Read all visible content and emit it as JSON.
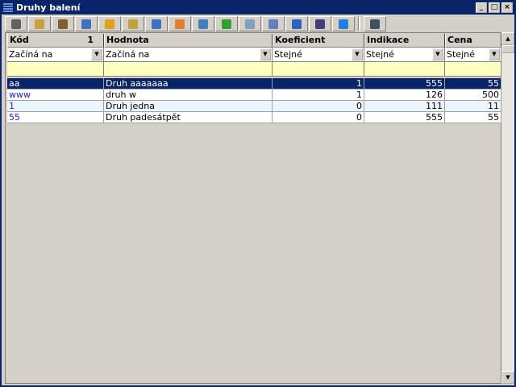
{
  "window": {
    "title": "Druhy balení"
  },
  "toolbar": {
    "buttons": [
      "list-icon",
      "view-icon",
      "view-list-icon",
      "new-icon",
      "edit-icon",
      "delete-icon",
      "copy-icon",
      "sort-icon",
      "filter-icon",
      "excel-icon",
      "edit-form-icon",
      "print-preview-icon",
      "clock-icon",
      "refresh-icon",
      "help-icon",
      "print-icon"
    ]
  },
  "grid": {
    "columns": [
      {
        "label": "Kód",
        "filter": "Začíná na",
        "sort": "1"
      },
      {
        "label": "Hodnota",
        "filter": "Začíná na"
      },
      {
        "label": "Koeficient",
        "filter": "Stejné"
      },
      {
        "label": "Indikace",
        "filter": "Stejné"
      },
      {
        "label": "Cena",
        "filter": "Stejné"
      }
    ],
    "rows": [
      [
        "aa",
        "Druh aaaaaaa",
        "1",
        "555",
        "55"
      ],
      [
        "www",
        "druh w",
        "1",
        "126",
        "500"
      ],
      [
        "1",
        "Druh jedna",
        "0",
        "111",
        "11"
      ],
      [
        "55",
        "Druh padesátpět",
        "0",
        "555",
        "55"
      ]
    ]
  }
}
